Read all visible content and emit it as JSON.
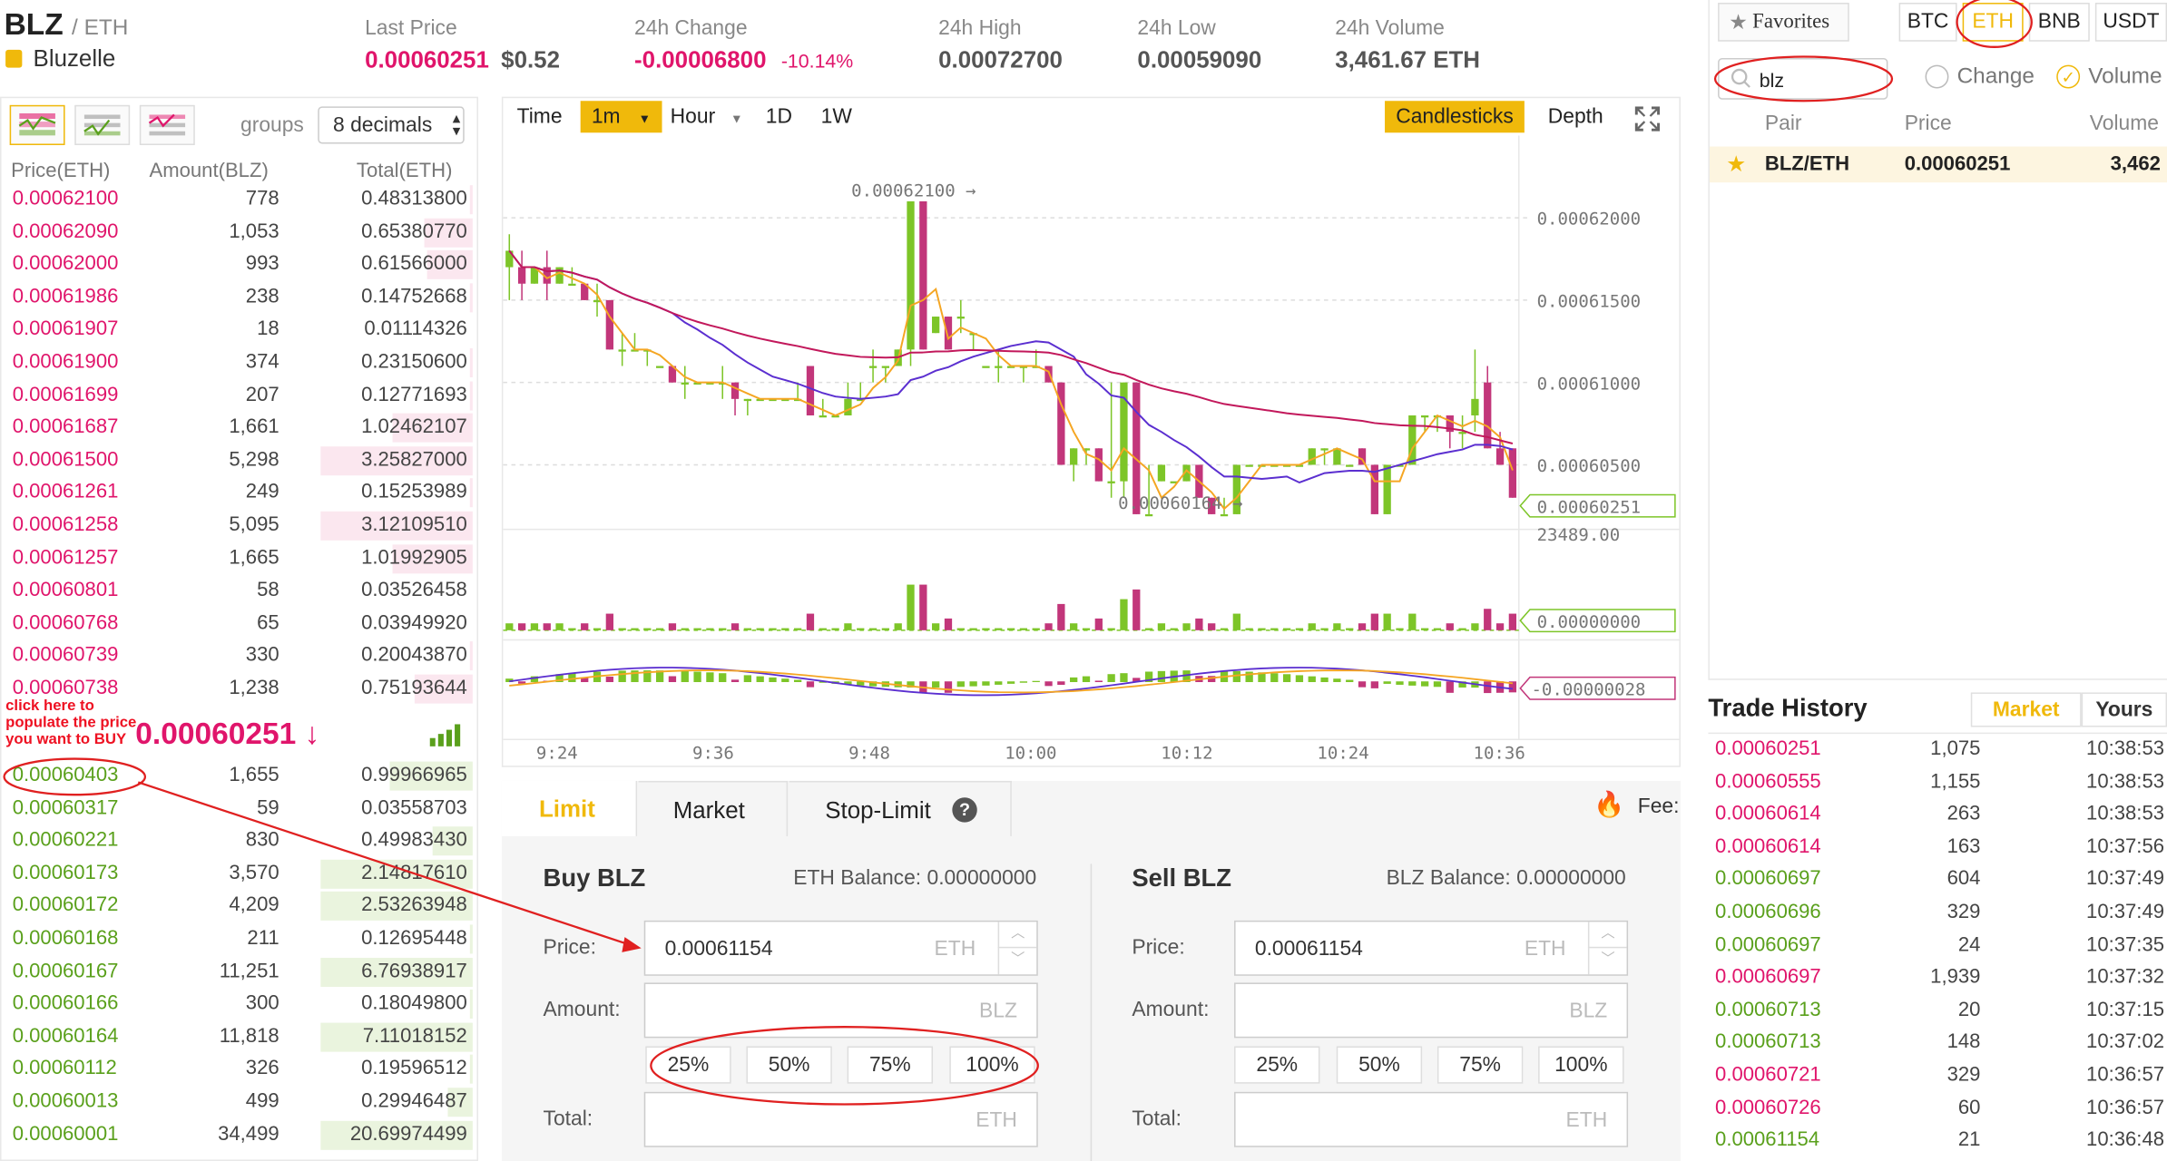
{
  "header": {
    "symbol": "BLZ",
    "quote": "/ ETH",
    "name": "Bluzelle",
    "last_price_label": "Last Price",
    "last_price": "0.00060251",
    "last_price_usd": "$0.52",
    "change_label": "24h Change",
    "change": "-0.00006800",
    "change_pct": "-10.14%",
    "high_label": "24h High",
    "high": "0.00072700",
    "low_label": "24h Low",
    "low": "0.00059090",
    "volume_label": "24h Volume",
    "volume": "3,461.67 ETH"
  },
  "orderbook": {
    "groups_label": "groups",
    "decimals": "8 decimals",
    "columns": [
      "Price(ETH)",
      "Amount(BLZ)",
      "Total(ETH)"
    ],
    "asks": [
      {
        "price": "0.00062100",
        "amount": "778",
        "total": "0.48313800",
        "depth": 0.02
      },
      {
        "price": "0.00062090",
        "amount": "1,053",
        "total": "0.65380770",
        "depth": 0.32
      },
      {
        "price": "0.00062000",
        "amount": "993",
        "total": "0.61566000",
        "depth": 0.3
      },
      {
        "price": "0.00061986",
        "amount": "238",
        "total": "0.14752668",
        "depth": 0.02
      },
      {
        "price": "0.00061907",
        "amount": "18",
        "total": "0.01114326",
        "depth": 0.0
      },
      {
        "price": "0.00061900",
        "amount": "374",
        "total": "0.23150600",
        "depth": 0.02
      },
      {
        "price": "0.00061699",
        "amount": "207",
        "total": "0.12771693",
        "depth": 0.02
      },
      {
        "price": "0.00061687",
        "amount": "1,661",
        "total": "1.02462107",
        "depth": 0.53
      },
      {
        "price": "0.00061500",
        "amount": "5,298",
        "total": "3.25827000",
        "depth": 1.0
      },
      {
        "price": "0.00061261",
        "amount": "249",
        "total": "0.15253989",
        "depth": 0.02
      },
      {
        "price": "0.00061258",
        "amount": "5,095",
        "total": "3.12109510",
        "depth": 1.0
      },
      {
        "price": "0.00061257",
        "amount": "1,665",
        "total": "1.01992905",
        "depth": 0.53
      },
      {
        "price": "0.00060801",
        "amount": "58",
        "total": "0.03526458",
        "depth": 0.0
      },
      {
        "price": "0.00060768",
        "amount": "65",
        "total": "0.03949920",
        "depth": 0.0
      },
      {
        "price": "0.00060739",
        "amount": "330",
        "total": "0.20043870",
        "depth": 0.02
      },
      {
        "price": "0.00060738",
        "amount": "1,238",
        "total": "0.75193644",
        "depth": 0.38
      }
    ],
    "mid_price": "0.00060251 ↓",
    "annotation": "click here to populate the price you want to BUY",
    "bids": [
      {
        "price": "0.00060403",
        "amount": "1,655",
        "total": "0.99966965",
        "depth": 0.55
      },
      {
        "price": "0.00060317",
        "amount": "59",
        "total": "0.03558703",
        "depth": 0.0
      },
      {
        "price": "0.00060221",
        "amount": "830",
        "total": "0.49983430",
        "depth": 0.26
      },
      {
        "price": "0.00060173",
        "amount": "3,570",
        "total": "2.14817610",
        "depth": 1.0
      },
      {
        "price": "0.00060172",
        "amount": "4,209",
        "total": "2.53263948",
        "depth": 1.0
      },
      {
        "price": "0.00060168",
        "amount": "211",
        "total": "0.12695448",
        "depth": 0.02
      },
      {
        "price": "0.00060167",
        "amount": "11,251",
        "total": "6.76938917",
        "depth": 1.0
      },
      {
        "price": "0.00060166",
        "amount": "300",
        "total": "0.18049800",
        "depth": 0.02
      },
      {
        "price": "0.00060164",
        "amount": "11,818",
        "total": "7.11018152",
        "depth": 1.0
      },
      {
        "price": "0.00060112",
        "amount": "326",
        "total": "0.19596512",
        "depth": 0.02
      },
      {
        "price": "0.00060013",
        "amount": "499",
        "total": "0.29946487",
        "depth": 0.16
      },
      {
        "price": "0.00060001",
        "amount": "34,499",
        "total": "20.69974499",
        "depth": 1.0
      }
    ]
  },
  "chart_toolbar": {
    "time": "Time",
    "interval": "1m",
    "hour": "Hour",
    "d1": "1D",
    "w1": "1W",
    "candles": "Candlesticks",
    "depth": "Depth"
  },
  "chart_data": {
    "type": "candlestick",
    "x_ticks": [
      "9:24",
      "9:36",
      "9:48",
      "10:00",
      "10:12",
      "10:24",
      "10:36"
    ],
    "y_ticks": [
      "0.00062000",
      "0.00061500",
      "0.00061000",
      "0.00060500"
    ],
    "ylim": [
      0.0006,
      0.000624
    ],
    "max_label": "0.00062100",
    "min_label": "0.00060164",
    "current_price": "0.00060251",
    "volume_max": "23489.00",
    "volume_indicator": "0.00000000",
    "macd_value": "-0.00000028",
    "candles": [
      [
        0.000617,
        0.000618,
        0.000619,
        0.000615
      ],
      [
        0.000617,
        0.000616,
        0.000618,
        0.000615
      ],
      [
        0.000616,
        0.000617,
        0.000617,
        0.000616
      ],
      [
        0.000617,
        0.000616,
        0.000618,
        0.000615
      ],
      [
        0.000616,
        0.000617,
        0.000617,
        0.000616
      ],
      [
        0.000616,
        0.000616,
        0.000617,
        0.000616
      ],
      [
        0.000616,
        0.000615,
        0.000616,
        0.000615
      ],
      [
        0.000615,
        0.000615,
        0.000616,
        0.000614
      ],
      [
        0.000615,
        0.000612,
        0.000615,
        0.000612
      ],
      [
        0.000612,
        0.000612,
        0.000613,
        0.000611
      ],
      [
        0.000612,
        0.000612,
        0.000613,
        0.000612
      ],
      [
        0.000612,
        0.000612,
        0.000612,
        0.000611
      ],
      [
        0.000611,
        0.000611,
        0.000611,
        0.000611
      ],
      [
        0.000611,
        0.00061,
        0.000611,
        0.00061
      ],
      [
        0.00061,
        0.00061,
        0.000611,
        0.000609
      ],
      [
        0.00061,
        0.00061,
        0.00061,
        0.00061
      ],
      [
        0.00061,
        0.00061,
        0.00061,
        0.00061
      ],
      [
        0.00061,
        0.00061,
        0.000611,
        0.000609
      ],
      [
        0.00061,
        0.000609,
        0.00061,
        0.000608
      ],
      [
        0.000609,
        0.000609,
        0.000609,
        0.000608
      ],
      [
        0.000609,
        0.000609,
        0.000609,
        0.000609
      ],
      [
        0.000609,
        0.000609,
        0.000609,
        0.000609
      ],
      [
        0.000609,
        0.000609,
        0.000609,
        0.000609
      ],
      [
        0.000609,
        0.000609,
        0.00061,
        0.000609
      ],
      [
        0.000611,
        0.000608,
        0.000611,
        0.000608
      ],
      [
        0.000608,
        0.000608,
        0.000609,
        0.000608
      ],
      [
        0.000608,
        0.000608,
        0.000608,
        0.000608
      ],
      [
        0.000608,
        0.000609,
        0.00061,
        0.000608
      ],
      [
        0.000609,
        0.000609,
        0.00061,
        0.000609
      ],
      [
        0.000611,
        0.000611,
        0.000612,
        0.00061
      ],
      [
        0.000611,
        0.000611,
        0.000611,
        0.00061
      ],
      [
        0.000611,
        0.000612,
        0.000612,
        0.000611
      ],
      [
        0.000612,
        0.000621,
        0.000621,
        0.000611
      ],
      [
        0.000621,
        0.000612,
        0.000621,
        0.000612
      ],
      [
        0.000613,
        0.000614,
        0.000614,
        0.000613
      ],
      [
        0.000614,
        0.000612,
        0.000614,
        0.000612
      ],
      [
        0.000614,
        0.000614,
        0.000615,
        0.000613
      ],
      [
        0.000613,
        0.000613,
        0.000613,
        0.000612
      ],
      [
        0.000611,
        0.000611,
        0.000611,
        0.000611
      ],
      [
        0.000611,
        0.000611,
        0.000612,
        0.00061
      ],
      [
        0.000611,
        0.000611,
        0.000611,
        0.000611
      ],
      [
        0.000611,
        0.000611,
        0.000611,
        0.00061
      ],
      [
        0.000611,
        0.000611,
        0.000612,
        0.000611
      ],
      [
        0.000611,
        0.00061,
        0.000611,
        0.00061
      ],
      [
        0.00061,
        0.000605,
        0.00061,
        0.000605
      ],
      [
        0.000605,
        0.000606,
        0.000606,
        0.000604
      ],
      [
        0.000606,
        0.000606,
        0.000606,
        0.000605
      ],
      [
        0.000606,
        0.000604,
        0.000606,
        0.000604
      ],
      [
        0.000604,
        0.000604,
        0.00061,
        0.000603
      ],
      [
        0.000604,
        0.00061,
        0.00061,
        0.000603
      ],
      [
        0.00061,
        0.000602,
        0.00061,
        0.000602
      ],
      [
        0.000602,
        0.000602,
        0.000605,
        0.000602
      ],
      [
        0.000604,
        0.000605,
        0.000605,
        0.000604
      ],
      [
        0.000604,
        0.000604,
        0.000604,
        0.000604
      ],
      [
        0.000604,
        0.000605,
        0.000605,
        0.000604
      ],
      [
        0.000605,
        0.000603,
        0.000605,
        0.000603
      ],
      [
        0.000603,
        0.000602,
        0.000603,
        0.000602
      ],
      [
        0.000602,
        0.000602,
        0.000603,
        0.000602
      ],
      [
        0.000602,
        0.000605,
        0.000605,
        0.000602
      ],
      [
        0.000605,
        0.000605,
        0.000605,
        0.000605
      ],
      [
        0.000605,
        0.000605,
        0.000605,
        0.000605
      ],
      [
        0.000605,
        0.000605,
        0.000605,
        0.000605
      ],
      [
        0.000605,
        0.000605,
        0.000605,
        0.000605
      ],
      [
        0.000605,
        0.000605,
        0.000605,
        0.000605
      ],
      [
        0.000605,
        0.000606,
        0.000606,
        0.000605
      ],
      [
        0.000606,
        0.000606,
        0.000606,
        0.000605
      ],
      [
        0.000605,
        0.000606,
        0.000606,
        0.000605
      ],
      [
        0.000605,
        0.000605,
        0.000605,
        0.000605
      ],
      [
        0.000606,
        0.000605,
        0.000606,
        0.000605
      ],
      [
        0.000605,
        0.000602,
        0.000605,
        0.000602
      ],
      [
        0.000602,
        0.000605,
        0.000605,
        0.000602
      ],
      [
        0.000605,
        0.000605,
        0.000605,
        0.000605
      ],
      [
        0.000605,
        0.000608,
        0.000608,
        0.000605
      ],
      [
        0.000608,
        0.000608,
        0.000608,
        0.000607
      ],
      [
        0.000608,
        0.000608,
        0.000608,
        0.000607
      ],
      [
        0.000608,
        0.000607,
        0.000608,
        0.000606
      ],
      [
        0.000607,
        0.000607,
        0.000608,
        0.000606
      ],
      [
        0.000608,
        0.000609,
        0.000612,
        0.000607
      ],
      [
        0.00061,
        0.000606,
        0.000611,
        0.000606
      ],
      [
        0.000606,
        0.000605,
        0.000607,
        0.000605
      ],
      [
        0.000606,
        0.000603,
        0.000606,
        0.000603
      ]
    ]
  },
  "order_form": {
    "tabs": [
      "Limit",
      "Market",
      "Stop-Limit"
    ],
    "fee_label": "Fee:",
    "buy": {
      "title": "Buy BLZ",
      "balance_label": "ETH Balance: 0.00000000",
      "price_label": "Price:",
      "price_value": "0.00061154",
      "price_unit": "ETH",
      "amount_label": "Amount:",
      "amount_unit": "BLZ",
      "total_label": "Total:",
      "total_unit": "ETH"
    },
    "sell": {
      "title": "Sell BLZ",
      "balance_label": "BLZ Balance: 0.00000000",
      "price_label": "Price:",
      "price_value": "0.00061154",
      "price_unit": "ETH",
      "amount_label": "Amount:",
      "amount_unit": "BLZ",
      "total_label": "Total:",
      "total_unit": "ETH"
    },
    "pcts": [
      "25%",
      "50%",
      "75%",
      "100%"
    ]
  },
  "markets": {
    "favorites": "Favorites",
    "tabs": [
      "BTC",
      "ETH",
      "BNB",
      "USDT"
    ],
    "search_value": "blz",
    "change_label": "Change",
    "volume_label": "Volume",
    "columns": [
      "Pair",
      "Price",
      "Volume"
    ],
    "pairs": [
      {
        "pair": "BLZ/ETH",
        "price": "0.00060251",
        "volume": "3,462"
      }
    ]
  },
  "trade_history": {
    "title": "Trade History",
    "tab_market": "Market",
    "tab_yours": "Yours",
    "rows": [
      {
        "price": "0.00060251",
        "amount": "1,075",
        "time": "10:38:53",
        "side": "sell"
      },
      {
        "price": "0.00060555",
        "amount": "1,155",
        "time": "10:38:53",
        "side": "sell"
      },
      {
        "price": "0.00060614",
        "amount": "263",
        "time": "10:38:53",
        "side": "sell"
      },
      {
        "price": "0.00060614",
        "amount": "163",
        "time": "10:37:56",
        "side": "sell"
      },
      {
        "price": "0.00060697",
        "amount": "604",
        "time": "10:37:49",
        "side": "buy"
      },
      {
        "price": "0.00060696",
        "amount": "329",
        "time": "10:37:49",
        "side": "buy"
      },
      {
        "price": "0.00060697",
        "amount": "24",
        "time": "10:37:35",
        "side": "buy"
      },
      {
        "price": "0.00060697",
        "amount": "1,939",
        "time": "10:37:32",
        "side": "sell"
      },
      {
        "price": "0.00060713",
        "amount": "20",
        "time": "10:37:15",
        "side": "buy"
      },
      {
        "price": "0.00060713",
        "amount": "148",
        "time": "10:37:02",
        "side": "buy"
      },
      {
        "price": "0.00060721",
        "amount": "329",
        "time": "10:36:57",
        "side": "sell"
      },
      {
        "price": "0.00060726",
        "amount": "60",
        "time": "10:36:57",
        "side": "sell"
      },
      {
        "price": "0.00061154",
        "amount": "21",
        "time": "10:36:48",
        "side": "buy"
      }
    ]
  },
  "colors": {
    "red": "#e0156b",
    "green": "#5aa01c",
    "gold": "#f0b90b",
    "annot": "#e02020"
  }
}
